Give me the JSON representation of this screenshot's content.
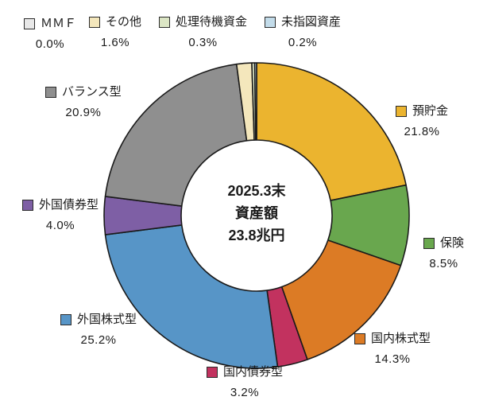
{
  "chart_data": {
    "type": "pie",
    "donut": true,
    "direction": "clockwise",
    "start_angle_deg": 0,
    "outline_color": "#1a1a1a",
    "center_label": {
      "line1": "2025.3末",
      "line2": "資産額",
      "line3": "23.8兆円"
    },
    "segments": [
      {
        "label": "預貯金",
        "value": 21.8,
        "percent_label": "21.8%",
        "color": "#EBB42F"
      },
      {
        "label": "保険",
        "value": 8.5,
        "percent_label": "8.5%",
        "color": "#69A74E"
      },
      {
        "label": "国内株式型",
        "value": 14.3,
        "percent_label": "14.3%",
        "color": "#DC7B25"
      },
      {
        "label": "国内債券型",
        "value": 3.2,
        "percent_label": "3.2%",
        "color": "#C2325F"
      },
      {
        "label": "外国株式型",
        "value": 25.2,
        "percent_label": "25.2%",
        "color": "#5795C7"
      },
      {
        "label": "外国債券型",
        "value": 4.0,
        "percent_label": "4.0%",
        "color": "#7E5FA5"
      },
      {
        "label": "バランス型",
        "value": 20.9,
        "percent_label": "20.9%",
        "color": "#8F8F8F"
      },
      {
        "label": "ＭＭＦ",
        "value": 0.0,
        "percent_label": "0.0%",
        "color": "#E8E8E8"
      },
      {
        "label": "その他",
        "value": 1.6,
        "percent_label": "1.6%",
        "color": "#F4E7BC"
      },
      {
        "label": "処理待機資金",
        "value": 0.3,
        "percent_label": "0.3%",
        "color": "#DCE6C5"
      },
      {
        "label": "未指図資産",
        "value": 0.2,
        "percent_label": "0.2%",
        "color": "#C3DCEA"
      }
    ]
  }
}
